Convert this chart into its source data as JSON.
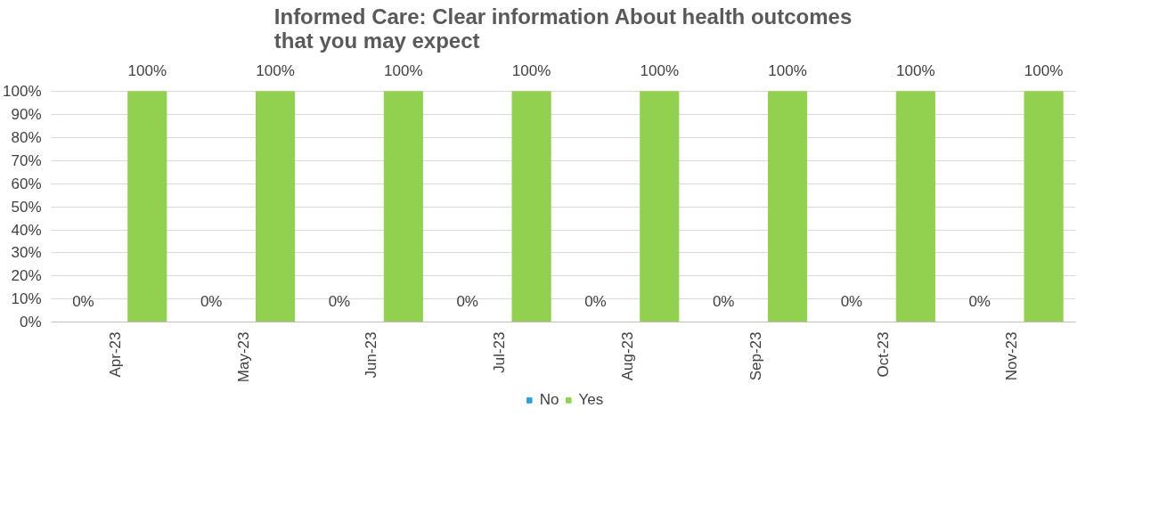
{
  "chart_data": {
    "type": "bar",
    "title": "Informed Care: Clear information About health outcomes that you may expect",
    "categories": [
      "Apr-23",
      "May-23",
      "Jun-23",
      "Jul-23",
      "Aug-23",
      "Sep-23",
      "Oct-23",
      "Nov-23"
    ],
    "series": [
      {
        "name": "No",
        "color": "#2e9fd6",
        "values": [
          0,
          0,
          0,
          0,
          0,
          0,
          0,
          0
        ],
        "value_labels": [
          "0%",
          "0%",
          "0%",
          "0%",
          "0%",
          "0%",
          "0%",
          "0%"
        ]
      },
      {
        "name": "Yes",
        "color": "#92d050",
        "values": [
          100,
          100,
          100,
          100,
          100,
          100,
          100,
          100
        ],
        "value_labels": [
          "100%",
          "100%",
          "100%",
          "100%",
          "100%",
          "100%",
          "100%",
          "100%"
        ]
      }
    ],
    "ylim": [
      0,
      100
    ],
    "yticks": [
      {
        "value": 0,
        "label": "0%"
      },
      {
        "value": 10,
        "label": "10%"
      },
      {
        "value": 20,
        "label": "20%"
      },
      {
        "value": 30,
        "label": "30%"
      },
      {
        "value": 40,
        "label": "40%"
      },
      {
        "value": 50,
        "label": "50%"
      },
      {
        "value": 60,
        "label": "60%"
      },
      {
        "value": 70,
        "label": "70%"
      },
      {
        "value": 80,
        "label": "80%"
      },
      {
        "value": 90,
        "label": "90%"
      },
      {
        "value": 100,
        "label": "100%"
      }
    ],
    "grid": "y",
    "legend": "bottom"
  }
}
